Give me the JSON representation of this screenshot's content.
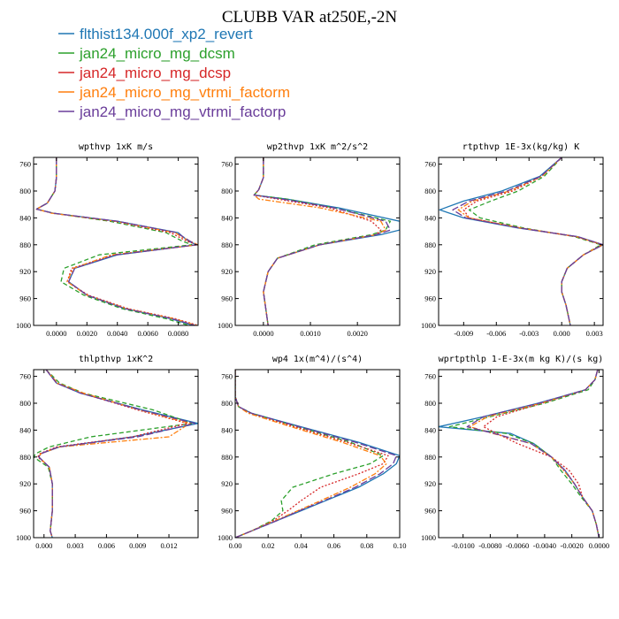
{
  "title": "CLUBB VAR at250E,-2N",
  "legend": [
    {
      "label": "flthist134.000f_xp2_revert",
      "color": "#1f77b4",
      "dash": ""
    },
    {
      "label": "jan24_micro_mg_dcsm",
      "color": "#2ca02c",
      "dash": "5,3"
    },
    {
      "label": "jan24_micro_mg_dcsp",
      "color": "#d62728",
      "dash": "2,2"
    },
    {
      "label": "jan24_micro_mg_vtrmi_factorm",
      "color": "#ff7f0e",
      "dash": "6,2,2,2"
    },
    {
      "label": "jan24_micro_mg_vtrmi_factorp",
      "color": "#6a3d9a",
      "dash": "8,3"
    }
  ],
  "chart_data": [
    {
      "type": "line",
      "title": "wpthvp  1xK m/s",
      "ylim": [
        1000,
        750
      ],
      "xlim": [
        -0.0015,
        0.0093
      ],
      "yticks": [
        760,
        800,
        840,
        880,
        920,
        960,
        1000
      ],
      "xticks": [
        0.0,
        0.002,
        0.004,
        0.006,
        0.008
      ],
      "xticklabels": [
        "0.0000",
        "0.0020",
        "0.0040",
        "0.0060",
        "0.0080"
      ],
      "y": [
        750,
        780,
        800,
        818,
        827,
        833,
        845,
        862,
        868,
        875,
        880,
        895,
        915,
        935,
        955,
        975,
        990,
        1000
      ],
      "series": [
        {
          "name": "flthist134.000f_xp2_revert",
          "values": [
            0.0,
            0.0,
            -0.0001,
            -0.0006,
            -0.0013,
            -0.0002,
            0.004,
            0.008,
            0.0083,
            0.0087,
            0.0092,
            0.004,
            0.0012,
            0.0008,
            0.002,
            0.0045,
            0.0075,
            0.009
          ]
        },
        {
          "name": "jan24_micro_mg_dcsm",
          "values": [
            0.0,
            0.0,
            -0.0001,
            -0.0006,
            -0.0013,
            -0.0002,
            0.0035,
            0.0072,
            0.0077,
            0.0083,
            0.0089,
            0.0028,
            0.0005,
            0.0003,
            0.0018,
            0.0043,
            0.0072,
            0.0087
          ]
        },
        {
          "name": "jan24_micro_mg_dcsp",
          "values": [
            0.0,
            0.0,
            -0.0001,
            -0.0006,
            -0.0013,
            -0.0003,
            0.0038,
            0.0075,
            0.008,
            0.0086,
            0.0093,
            0.0038,
            0.001,
            0.0007,
            0.0021,
            0.0047,
            0.0078,
            0.0093
          ]
        },
        {
          "name": "jan24_micro_mg_vtrmi_factorm",
          "values": [
            0.0,
            0.0,
            -0.0001,
            -0.0006,
            -0.0013,
            -0.0003,
            0.0039,
            0.0078,
            0.0082,
            0.0088,
            0.0093,
            0.0036,
            0.0011,
            0.0007,
            0.002,
            0.0046,
            0.0077,
            0.0092
          ]
        },
        {
          "name": "jan24_micro_mg_vtrmi_factorp",
          "values": [
            0.0,
            0.0,
            -0.0001,
            -0.0006,
            -0.0013,
            -0.0002,
            0.004,
            0.0079,
            0.0083,
            0.0088,
            0.0092,
            0.0039,
            0.0012,
            0.0008,
            0.002,
            0.0045,
            0.0076,
            0.0091
          ]
        }
      ]
    },
    {
      "type": "line",
      "title": "wp2thvp  1xK m^2/s^2",
      "ylim": [
        1000,
        750
      ],
      "xlim": [
        -0.0006,
        0.0029
      ],
      "yticks": [
        760,
        800,
        840,
        880,
        920,
        960,
        1000
      ],
      "xticks": [
        0.0,
        0.001,
        0.002
      ],
      "xticklabels": [
        "0.0000",
        "0.0010",
        "0.0020"
      ],
      "y": [
        750,
        780,
        798,
        806,
        812,
        825,
        845,
        858,
        865,
        880,
        900,
        920,
        950,
        1000
      ],
      "series": [
        {
          "name": "flthist134.000f_xp2_revert",
          "values": [
            0.0,
            0.0,
            -0.0001,
            -0.0002,
            0.0005,
            0.0016,
            0.0029,
            0.0029,
            0.0025,
            0.0012,
            0.0003,
            0.0001,
            0.0,
            0.0001
          ]
        },
        {
          "name": "jan24_micro_mg_dcsm",
          "values": [
            0.0,
            0.0,
            -0.0001,
            -0.0002,
            0.0005,
            0.0015,
            0.0027,
            0.0026,
            0.0023,
            0.0011,
            0.0003,
            0.0001,
            0.0,
            0.0001
          ]
        },
        {
          "name": "jan24_micro_mg_dcsp",
          "values": [
            0.0,
            0.0,
            -0.0001,
            -0.0002,
            0.0003,
            0.0014,
            0.0023,
            0.0025,
            0.0024,
            0.0012,
            0.0003,
            0.0001,
            0.0,
            0.0001
          ]
        },
        {
          "name": "jan24_micro_mg_vtrmi_factorm",
          "values": [
            0.0,
            0.0,
            -0.0001,
            -0.0002,
            -0.0001,
            0.0012,
            0.0025,
            0.0026,
            0.0024,
            0.0012,
            0.0003,
            0.0001,
            0.0,
            0.0001
          ]
        },
        {
          "name": "jan24_micro_mg_vtrmi_factorp",
          "values": [
            0.0,
            0.0,
            -0.0001,
            -0.0002,
            0.0004,
            0.0015,
            0.0026,
            0.0027,
            0.0024,
            0.0012,
            0.0003,
            0.0001,
            0.0,
            0.0001
          ]
        }
      ]
    },
    {
      "type": "line",
      "title": "rtpthvp  1E-3x(kg/kg) K",
      "ylim": [
        1000,
        750
      ],
      "xlim": [
        -0.0113,
        0.0038
      ],
      "yticks": [
        760,
        800,
        840,
        880,
        920,
        960,
        1000
      ],
      "xticks": [
        -0.009,
        -0.006,
        -0.003,
        0.0,
        0.003
      ],
      "xticklabels": [
        "-0.009",
        "-0.006",
        "-0.003",
        "0.000",
        "0.003"
      ],
      "y": [
        750,
        778,
        800,
        815,
        828,
        840,
        855,
        868,
        880,
        895,
        915,
        935,
        950,
        970,
        1000
      ],
      "series": [
        {
          "name": "flthist134.000f_xp2_revert",
          "values": [
            0.0,
            -0.002,
            -0.0055,
            -0.009,
            -0.0112,
            -0.009,
            -0.004,
            0.0015,
            0.0038,
            0.002,
            0.0005,
            0.0,
            0.0,
            0.0004,
            0.0008
          ]
        },
        {
          "name": "jan24_micro_mg_dcsm",
          "values": [
            0.0,
            -0.0016,
            -0.004,
            -0.0065,
            -0.0085,
            -0.0075,
            -0.0035,
            0.0012,
            0.0036,
            0.002,
            0.0005,
            0.0,
            0.0,
            0.0004,
            0.0008
          ]
        },
        {
          "name": "jan24_micro_mg_dcsp",
          "values": [
            0.0,
            -0.0018,
            -0.0045,
            -0.0078,
            -0.009,
            -0.0085,
            -0.0038,
            0.0014,
            0.0038,
            0.002,
            0.0005,
            0.0,
            0.0,
            0.0004,
            0.0008
          ]
        },
        {
          "name": "jan24_micro_mg_vtrmi_factorm",
          "values": [
            0.0,
            -0.0018,
            -0.0048,
            -0.0082,
            -0.0095,
            -0.0085,
            -0.0038,
            0.0014,
            0.0037,
            0.002,
            0.0005,
            0.0,
            0.0,
            0.0004,
            0.0008
          ]
        },
        {
          "name": "jan24_micro_mg_vtrmi_factorp",
          "values": [
            0.0,
            -0.0019,
            -0.005,
            -0.0085,
            -0.01,
            -0.0088,
            -0.0039,
            0.0015,
            0.0038,
            0.002,
            0.0005,
            0.0,
            0.0,
            0.0004,
            0.0008
          ]
        }
      ]
    },
    {
      "type": "line",
      "title": "thlpthvp  1xK^2",
      "ylim": [
        1000,
        750
      ],
      "xlim": [
        -0.001,
        0.0148
      ],
      "yticks": [
        760,
        800,
        840,
        880,
        920,
        960,
        1000
      ],
      "xticks": [
        0.0,
        0.003,
        0.006,
        0.009,
        0.012
      ],
      "xticklabels": [
        "0.000",
        "0.003",
        "0.006",
        "0.009",
        "0.012"
      ],
      "y": [
        750,
        770,
        785,
        810,
        830,
        850,
        865,
        875,
        880,
        895,
        920,
        960,
        990,
        1000
      ],
      "series": [
        {
          "name": "flthist134.000f_xp2_revert",
          "values": [
            0.0002,
            0.0012,
            0.0035,
            0.0095,
            0.0148,
            0.0085,
            0.0015,
            -0.0003,
            -0.0005,
            0.0005,
            0.0008,
            0.0008,
            0.0006,
            0.0008
          ]
        },
        {
          "name": "jan24_micro_mg_dcsm",
          "values": [
            0.0002,
            0.0015,
            0.0038,
            0.0105,
            0.0142,
            0.0045,
            0.0005,
            -0.0008,
            -0.001,
            0.0004,
            0.0008,
            0.0008,
            0.0006,
            0.0008
          ]
        },
        {
          "name": "jan24_micro_mg_dcsp",
          "values": [
            0.0002,
            0.0012,
            0.0036,
            0.009,
            0.0138,
            0.0085,
            0.0012,
            -0.0004,
            -0.0006,
            0.0005,
            0.0008,
            0.0008,
            0.0006,
            0.0008
          ]
        },
        {
          "name": "jan24_micro_mg_vtrmi_factorm",
          "values": [
            0.0002,
            0.0013,
            0.0038,
            0.0092,
            0.014,
            0.012,
            0.0015,
            -0.0003,
            -0.0005,
            0.0005,
            0.0008,
            0.0008,
            0.0006,
            0.0008
          ]
        },
        {
          "name": "jan24_micro_mg_vtrmi_factorp",
          "values": [
            0.0002,
            0.0012,
            0.0035,
            0.0093,
            0.0145,
            0.009,
            0.0014,
            -0.0003,
            -0.0005,
            0.0005,
            0.0008,
            0.0008,
            0.0006,
            0.0008
          ]
        }
      ]
    },
    {
      "type": "line",
      "title": "wp4  1x(m^4)/(s^4)",
      "ylim": [
        1000,
        750
      ],
      "xlim": [
        0.0,
        0.1
      ],
      "yticks": [
        760,
        800,
        840,
        880,
        920,
        960,
        1000
      ],
      "xticks": [
        0.0,
        0.02,
        0.04,
        0.06,
        0.08,
        0.1
      ],
      "xticklabels": [
        "0.00",
        "0.02",
        "0.04",
        "0.06",
        "0.08",
        "0.10"
      ],
      "y": [
        750,
        790,
        805,
        815,
        835,
        858,
        878,
        890,
        905,
        925,
        945,
        960,
        975,
        990,
        1000
      ],
      "series": [
        {
          "name": "flthist134.000f_xp2_revert",
          "values": [
            0.0,
            0.0,
            0.002,
            0.01,
            0.04,
            0.075,
            0.1,
            0.098,
            0.09,
            0.075,
            0.055,
            0.04,
            0.025,
            0.01,
            0.0
          ]
        },
        {
          "name": "jan24_micro_mg_dcsm",
          "values": [
            0.0,
            0.0,
            0.002,
            0.01,
            0.038,
            0.07,
            0.09,
            0.082,
            0.06,
            0.035,
            0.028,
            0.029,
            0.022,
            0.01,
            0.0
          ]
        },
        {
          "name": "jan24_micro_mg_dcsp",
          "values": [
            0.0,
            0.0,
            0.002,
            0.009,
            0.036,
            0.068,
            0.093,
            0.09,
            0.075,
            0.052,
            0.04,
            0.032,
            0.023,
            0.01,
            0.0
          ]
        },
        {
          "name": "jan24_micro_mg_vtrmi_factorm",
          "values": [
            0.0,
            0.0,
            0.002,
            0.008,
            0.034,
            0.065,
            0.088,
            0.092,
            0.085,
            0.07,
            0.052,
            0.038,
            0.024,
            0.01,
            0.0
          ]
        },
        {
          "name": "jan24_micro_mg_vtrmi_factorp",
          "values": [
            0.0,
            0.0,
            0.002,
            0.01,
            0.039,
            0.073,
            0.098,
            0.096,
            0.088,
            0.073,
            0.054,
            0.039,
            0.025,
            0.01,
            0.0
          ]
        }
      ]
    },
    {
      "type": "line",
      "title": "wprtpthlp  1-E-3x(m kg K)/(s kg)",
      "ylim": [
        1000,
        750
      ],
      "xlim": [
        -0.0118,
        0.0003
      ],
      "yticks": [
        760,
        800,
        840,
        880,
        920,
        960,
        1000
      ],
      "xticks": [
        -0.01,
        -0.008,
        -0.006,
        -0.004,
        -0.002,
        0.0
      ],
      "xticklabels": [
        "-0.0100",
        "-0.0080",
        "-0.0060",
        "-0.0040",
        "-0.0020",
        "0.0000"
      ],
      "y": [
        750,
        765,
        780,
        800,
        820,
        835,
        845,
        860,
        880,
        900,
        920,
        940,
        960,
        980,
        1000
      ],
      "series": [
        {
          "name": "flthist134.000f_xp2_revert",
          "values": [
            -0.0001,
            -0.0003,
            -0.001,
            -0.0045,
            -0.0085,
            -0.0118,
            -0.0065,
            -0.0048,
            -0.0035,
            -0.0025,
            -0.0018,
            -0.0012,
            -0.0005,
            -0.0002,
            0.0
          ]
        },
        {
          "name": "jan24_micro_mg_dcsm",
          "values": [
            -0.0001,
            -0.0003,
            -0.0008,
            -0.004,
            -0.008,
            -0.011,
            -0.0068,
            -0.0048,
            -0.0035,
            -0.0028,
            -0.002,
            -0.0013,
            -0.0005,
            -0.0002,
            0.0
          ]
        },
        {
          "name": "jan24_micro_mg_dcsp",
          "values": [
            -0.0001,
            -0.0003,
            -0.001,
            -0.0042,
            -0.0075,
            -0.0085,
            -0.0075,
            -0.006,
            -0.0035,
            -0.0022,
            -0.0015,
            -0.0012,
            -0.0005,
            -0.0002,
            0.0
          ]
        },
        {
          "name": "jan24_micro_mg_vtrmi_factorm",
          "values": [
            -0.0001,
            -0.0003,
            -0.001,
            -0.0043,
            -0.0082,
            -0.0095,
            -0.0078,
            -0.005,
            -0.0035,
            -0.0026,
            -0.0018,
            -0.0012,
            -0.0005,
            -0.0002,
            0.0
          ]
        },
        {
          "name": "jan24_micro_mg_vtrmi_factorp",
          "values": [
            -0.0001,
            -0.0003,
            -0.001,
            -0.0044,
            -0.0085,
            -0.0097,
            -0.0077,
            -0.005,
            -0.0035,
            -0.0025,
            -0.0018,
            -0.0012,
            -0.0005,
            -0.0002,
            0.0
          ]
        }
      ]
    }
  ]
}
